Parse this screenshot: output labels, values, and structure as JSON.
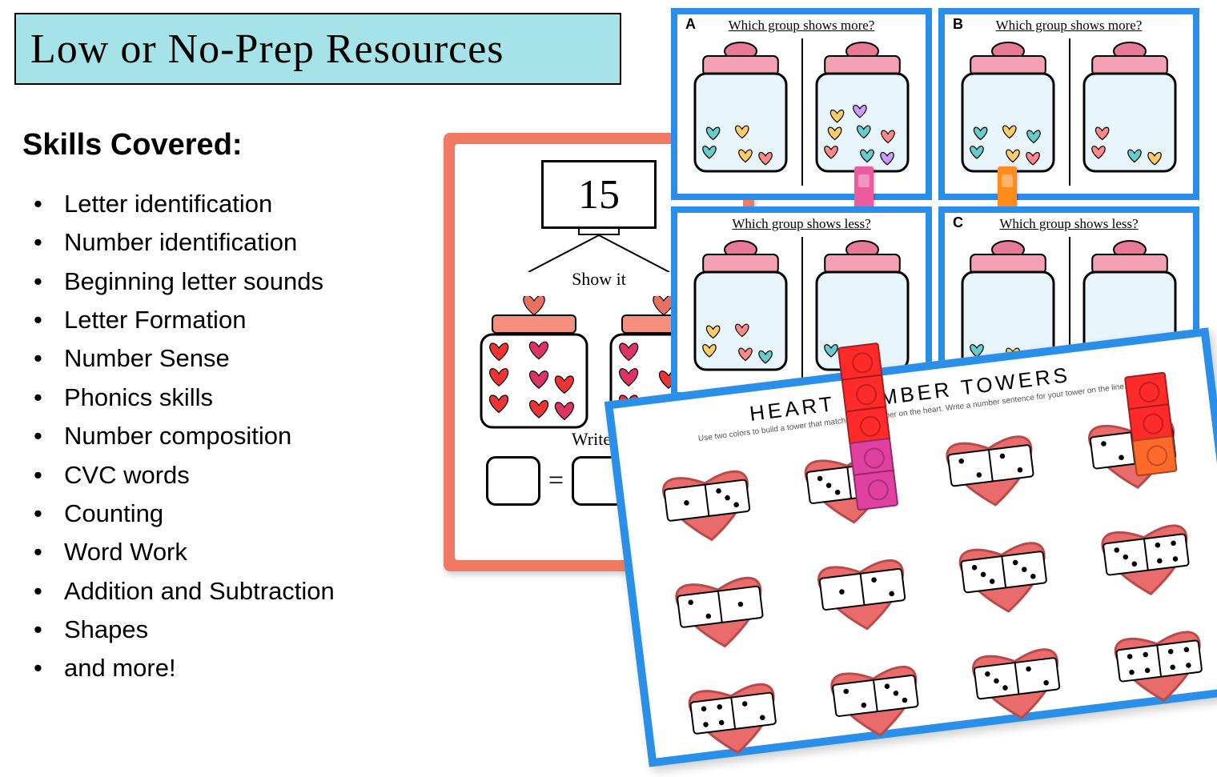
{
  "banner": {
    "title": "Low or No-Prep Resources",
    "bg": "#a6e3e8"
  },
  "skills": {
    "heading": "Skills Covered:",
    "items": [
      "Letter identification",
      "Number identification",
      "Beginning letter sounds",
      "Letter Formation",
      "Number Sense",
      "Phonics skills",
      "Number composition",
      "CVC words",
      "Counting",
      "Word Work",
      "Addition and Subtraction",
      "Shapes",
      "and more!"
    ]
  },
  "colors": {
    "salmon": "#f07a63",
    "blue_border": "#2a8fe8",
    "jar_pink_lid": "#f3a0b4",
    "jar_pink_lid_dark": "#e87a98",
    "jar_glass": "#e8f5fb",
    "heart_red": "#ea6b6b",
    "heart_stroke": "#b84a4a"
  },
  "showit_card": {
    "number": "15",
    "label_show": "Show it",
    "label_write": "Write It",
    "eq_sign": "=",
    "plus_sign": "+",
    "jar_hearts_left": [
      "#e33",
      "#e33",
      "#d36",
      "#e33",
      "#d36",
      "#e33",
      "#e33",
      "#d36"
    ],
    "jar_hearts_right": [
      "#e33",
      "#d36",
      "#e33",
      "#d36",
      "#e33",
      "#e33",
      "#d36"
    ]
  },
  "clipcards": [
    {
      "tag": "A",
      "q": "Which group shows more?",
      "left_hearts": [
        "#6cc",
        "#fc6",
        "#f88",
        "#6cc",
        "#fc6"
      ],
      "right_hearts": [
        "#f88",
        "#6cc",
        "#c9f",
        "#fc6",
        "#6cc",
        "#f88",
        "#fc6",
        "#c9f"
      ],
      "pin_color": "#ec5aa0",
      "pin_side": "right"
    },
    {
      "tag": "B",
      "q": "Which group shows more?",
      "left_hearts": [
        "#6cc",
        "#fc6",
        "#f88",
        "#6cc",
        "#fc6",
        "#6cc"
      ],
      "right_hearts": [
        "#f88",
        "#6cc",
        "#fc6",
        "#f88"
      ],
      "pin_color": "#ff8c1a",
      "pin_side": "left"
    },
    {
      "tag": "",
      "q": "Which group shows less?",
      "left_hearts": [
        "#fc6",
        "#f88",
        "#6cc",
        "#fc6",
        "#f88"
      ],
      "right_hearts": [
        "#6cc",
        "#fc6"
      ],
      "pin_color": "#16923c",
      "pin_side": "right"
    },
    {
      "tag": "C",
      "q": "Which group shows less?",
      "left_hearts": [
        "#6cc",
        "#fc6",
        "#f88"
      ],
      "right_hearts": [
        "#6cc",
        "#f9b"
      ],
      "pin_color": "#0a5fcf",
      "pin_side": "left"
    }
  ],
  "towers": {
    "title": "HEART NUMBER TOWERS",
    "subtitle": "Use two colors to build a tower that matches the number on the heart. Write a number sentence for your tower on the line.",
    "hearts": [
      {
        "dots": [
          1,
          3
        ]
      },
      {
        "dots": [
          3,
          2
        ]
      },
      {
        "dots": [
          2,
          2
        ]
      },
      {
        "dots": [
          2,
          4
        ]
      },
      {
        "dots": [
          2,
          1
        ]
      },
      {
        "dots": [
          1,
          2
        ]
      },
      {
        "dots": [
          3,
          3
        ]
      },
      {
        "dots": [
          3,
          4
        ]
      },
      {
        "dots": [
          4,
          2
        ]
      },
      {
        "dots": [
          2,
          3
        ]
      },
      {
        "dots": [
          3,
          2
        ]
      },
      {
        "dots": [
          4,
          4
        ]
      }
    ],
    "cube_towers": [
      {
        "col": 1,
        "row": 0,
        "x_off": 0.55,
        "cubes": [
          "#ff2a2a",
          "#ff2a2a",
          "#ff2a2a",
          "#e040a0",
          "#e040a0"
        ]
      },
      {
        "col": 3,
        "row": 0,
        "x_off": 0.4,
        "cubes": [
          "#ff2a2a",
          "#ff2a2a",
          "#ff6a2a"
        ]
      }
    ]
  }
}
